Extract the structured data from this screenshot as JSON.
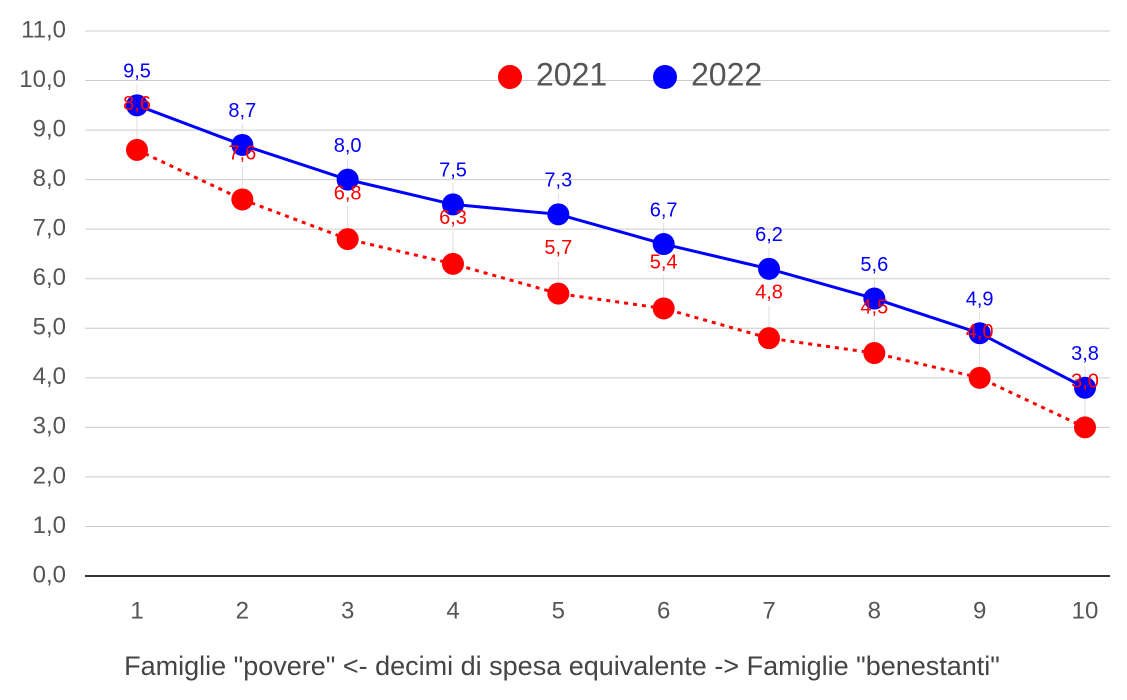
{
  "chart_data": {
    "type": "line",
    "x_label": "Famiglie \"povere\" <- decimi di spesa equivalente -> Famiglie \"benestanti\"",
    "categories": [
      "1",
      "2",
      "3",
      "4",
      "5",
      "6",
      "7",
      "8",
      "9",
      "10"
    ],
    "series": [
      {
        "name": "2021",
        "color": "#ff0000",
        "dash": "dotted",
        "values": [
          8.6,
          7.6,
          6.8,
          6.3,
          5.7,
          5.4,
          4.8,
          4.5,
          4.0,
          3.0
        ],
        "value_labels": [
          "8,6",
          "7,6",
          "6,8",
          "6,3",
          "5,7",
          "5,4",
          "4,8",
          "4,5",
          "4,0",
          "3,0"
        ]
      },
      {
        "name": "2022",
        "color": "#0000ff",
        "dash": "solid",
        "values": [
          9.5,
          8.7,
          8.0,
          7.5,
          7.3,
          6.7,
          6.2,
          5.6,
          4.9,
          3.8
        ],
        "value_labels": [
          "9,5",
          "8,7",
          "8,0",
          "7,5",
          "7,3",
          "6,7",
          "6,2",
          "5,6",
          "4,9",
          "3,8"
        ]
      }
    ],
    "ylim": [
      0,
      11
    ],
    "yticks": [
      {
        "value": 0,
        "label": "0,0"
      },
      {
        "value": 1,
        "label": "1,0"
      },
      {
        "value": 2,
        "label": "2,0"
      },
      {
        "value": 3,
        "label": "3,0"
      },
      {
        "value": 4,
        "label": "4,0"
      },
      {
        "value": 5,
        "label": "5,0"
      },
      {
        "value": 6,
        "label": "6,0"
      },
      {
        "value": 7,
        "label": "7,0"
      },
      {
        "value": 8,
        "label": "8,0"
      },
      {
        "value": 9,
        "label": "9,0"
      },
      {
        "value": 10,
        "label": "10,0"
      },
      {
        "value": 11,
        "label": "11,0"
      }
    ],
    "grid": true,
    "legend": "top"
  }
}
